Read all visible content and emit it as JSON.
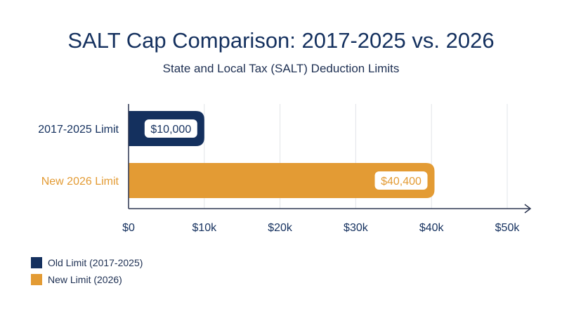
{
  "chart_data": {
    "type": "bar",
    "orientation": "horizontal",
    "title": "SALT Cap Comparison: 2017-2025 vs. 2026",
    "subtitle": "State and Local Tax (SALT) Deduction Limits",
    "categories": [
      "2017-2025 Limit",
      "New 2026 Limit"
    ],
    "values": [
      10000,
      40400
    ],
    "value_labels": [
      "$10,000",
      "$40,400"
    ],
    "colors": [
      "#14305e",
      "#e39b34"
    ],
    "xlim": [
      0,
      50000
    ],
    "x_ticks": [
      0,
      10000,
      20000,
      30000,
      40000,
      50000
    ],
    "x_tick_labels": [
      "$0",
      "$10k",
      "$20k",
      "$30k",
      "$40k",
      "$50k"
    ],
    "grid": true,
    "legend": {
      "placement": "bottom-left",
      "entries": [
        {
          "label": "Old Limit (2017-2025)",
          "color": "#14305e"
        },
        {
          "label": "New Limit (2026)",
          "color": "#e39b34"
        }
      ]
    }
  }
}
